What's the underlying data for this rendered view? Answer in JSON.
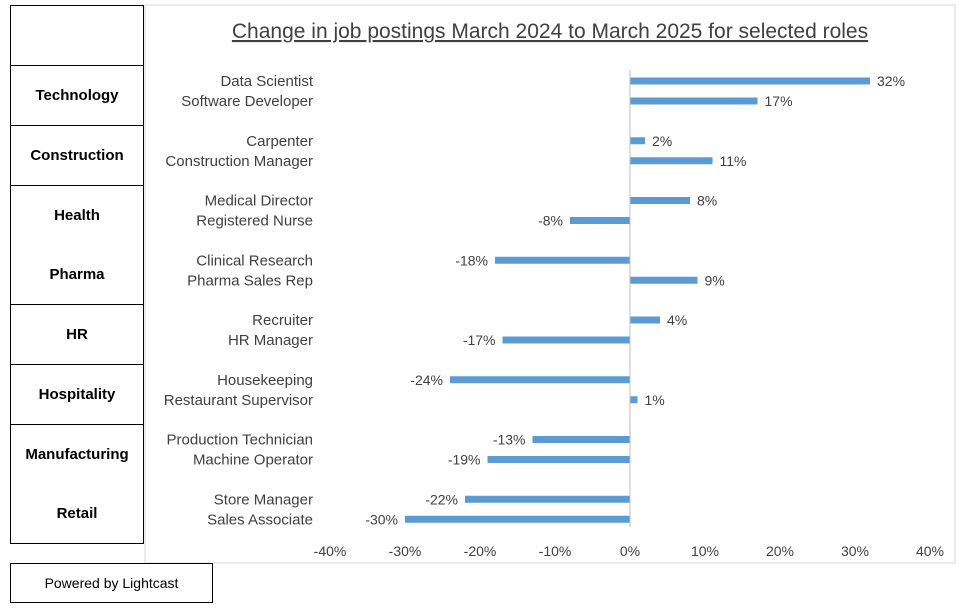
{
  "footer": {
    "text": "Powered by Lightcast"
  },
  "chart_data": {
    "type": "bar",
    "orientation": "horizontal",
    "title": "Change in job postings March 2024 to March 2025 for selected roles",
    "xlim": [
      -40,
      40
    ],
    "x_ticks": [
      "-40%",
      "-30%",
      "-20%",
      "-10%",
      "0%",
      "10%",
      "20%",
      "30%",
      "40%"
    ],
    "x_tick_values": [
      -40,
      -30,
      -20,
      -10,
      0,
      10,
      20,
      30,
      40
    ],
    "bar_color": "#5b9bd5",
    "grid": false,
    "groups": [
      {
        "sector": "Technology",
        "roles": [
          {
            "name": "Data Scientist",
            "value": 32,
            "label": "32%"
          },
          {
            "name": "Software Developer",
            "value": 17,
            "label": "17%"
          }
        ]
      },
      {
        "sector": "Construction",
        "roles": [
          {
            "name": "Carpenter",
            "value": 2,
            "label": "2%"
          },
          {
            "name": "Construction Manager",
            "value": 11,
            "label": "11%"
          }
        ]
      },
      {
        "sector": "Health",
        "roles": [
          {
            "name": "Medical Director",
            "value": 8,
            "label": "8%"
          },
          {
            "name": "Registered Nurse",
            "value": -8,
            "label": "-8%"
          }
        ]
      },
      {
        "sector": "Pharma",
        "roles": [
          {
            "name": "Clinical Research",
            "value": -18,
            "label": "-18%"
          },
          {
            "name": "Pharma Sales Rep",
            "value": 9,
            "label": "9%"
          }
        ]
      },
      {
        "sector": "HR",
        "roles": [
          {
            "name": "Recruiter",
            "value": 4,
            "label": "4%"
          },
          {
            "name": "HR Manager",
            "value": -17,
            "label": "-17%"
          }
        ]
      },
      {
        "sector": "Hospitality",
        "roles": [
          {
            "name": "Housekeeping",
            "value": -24,
            "label": "-24%"
          },
          {
            "name": "Restaurant Supervisor",
            "value": 1,
            "label": "1%"
          }
        ]
      },
      {
        "sector": "Manufacturing",
        "roles": [
          {
            "name": "Production Technician",
            "value": -13,
            "label": "-13%"
          },
          {
            "name": "Machine Operator",
            "value": -19,
            "label": "-19%"
          }
        ]
      },
      {
        "sector": "Retail",
        "roles": [
          {
            "name": "Store Manager",
            "value": -22,
            "label": "-22%"
          },
          {
            "name": "Sales Associate",
            "value": -30,
            "label": "-30%"
          }
        ]
      }
    ]
  }
}
